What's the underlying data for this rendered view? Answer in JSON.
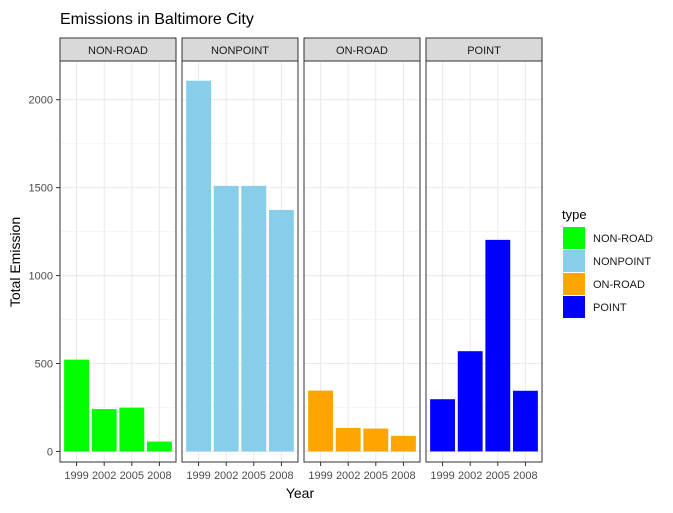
{
  "chart_data": {
    "type": "bar",
    "title": "Emissions in Baltimore City",
    "xlabel": "Year",
    "ylabel": "Total Emission",
    "categories": [
      "1999",
      "2002",
      "2005",
      "2008"
    ],
    "ylim": [
      -60,
      2220
    ],
    "yticks": [
      0,
      500,
      1000,
      1500,
      2000
    ],
    "grid": true,
    "legend_position": "right",
    "legend_title": "type",
    "facets": [
      {
        "label": "NON-ROAD",
        "color": "#00FF00",
        "values": [
          522,
          241,
          249,
          56
        ]
      },
      {
        "label": "NONPOINT",
        "color": "#87CEEB",
        "values": [
          2108,
          1510,
          1510,
          1373
        ]
      },
      {
        "label": "ON-ROAD",
        "color": "#FFA500",
        "values": [
          346,
          134,
          130,
          89
        ]
      },
      {
        "label": "POINT",
        "color": "#0000FF",
        "values": [
          297,
          570,
          1203,
          345
        ]
      }
    ]
  }
}
